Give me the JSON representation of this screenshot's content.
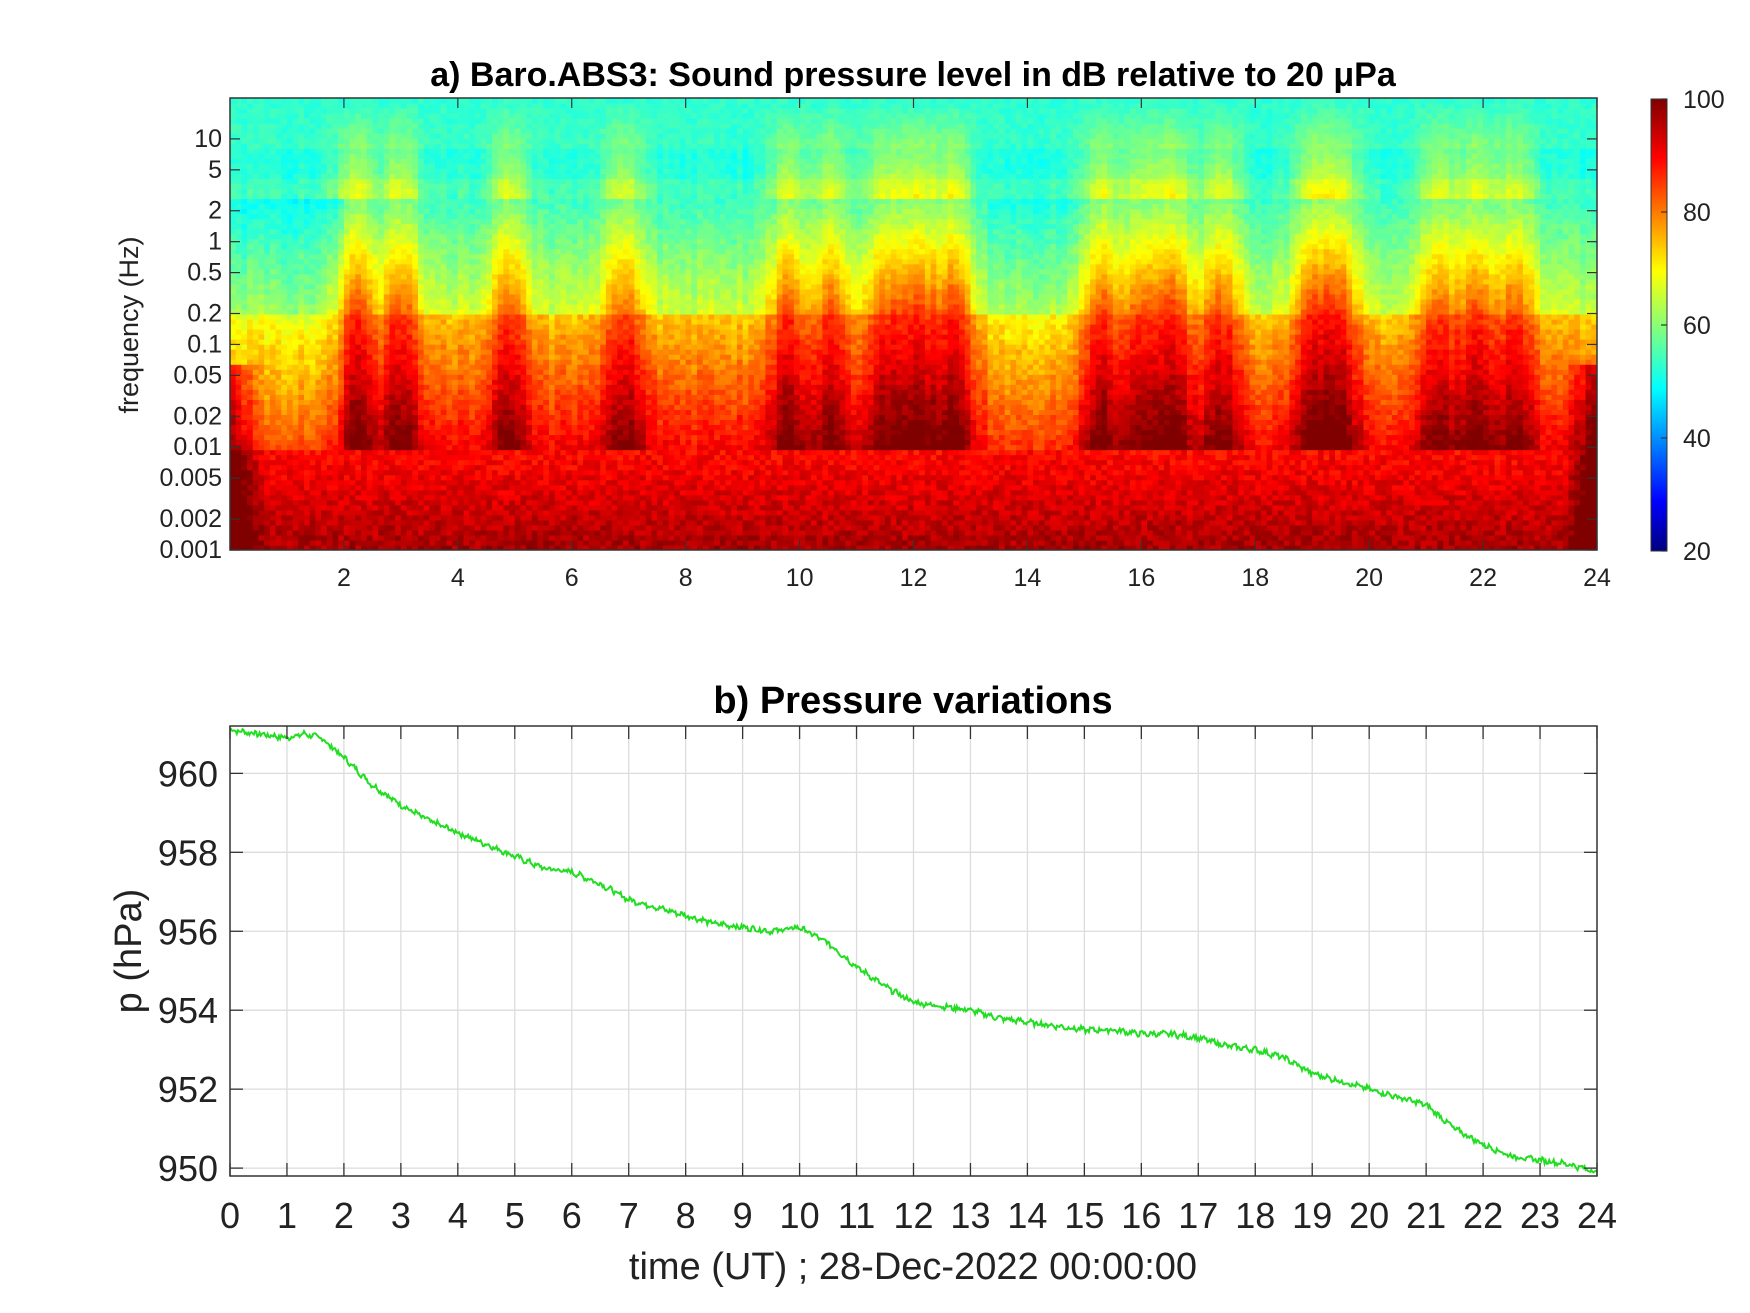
{
  "chart_data": [
    {
      "type": "heatmap",
      "title": "a) Baro.ABS3: Sound pressure level in dB relative to 20 μPa",
      "ylabel": "frequency (Hz)",
      "xlabel": "",
      "x_ticks": [
        2,
        4,
        6,
        8,
        10,
        12,
        14,
        16,
        18,
        20,
        22,
        24
      ],
      "xlim": [
        0,
        24
      ],
      "y_scale": "log",
      "ylim": [
        0.001,
        25
      ],
      "y_ticks": [
        0.001,
        0.002,
        0.005,
        0.01,
        0.02,
        0.05,
        0.1,
        0.2,
        0.5,
        1,
        2,
        5,
        10
      ],
      "y_tick_labels": [
        "0.001",
        "0.002",
        "0.005",
        "0.01",
        "0.02",
        "0.05",
        "0.1",
        "0.2",
        "0.5",
        "1",
        "2",
        "5",
        "10"
      ],
      "colorbar": {
        "min": 20,
        "max": 100,
        "ticks": [
          20,
          40,
          60,
          80,
          100
        ],
        "colormap": "jet"
      },
      "activity_bursts_hours": [
        2.2,
        3.0,
        4.9,
        6.9,
        9.8,
        10.6,
        11.5,
        12.1,
        12.7,
        15.3,
        16.0,
        16.6,
        17.4,
        19.0,
        19.5,
        21.2,
        21.9,
        22.6
      ]
    },
    {
      "type": "line",
      "title": "b) Pressure variations",
      "xlabel": "time (UT) ; 28-Dec-2022 00:00:00",
      "ylabel": "p (hPa)",
      "xlim": [
        0,
        24
      ],
      "ylim": [
        949.8,
        961.2
      ],
      "x_ticks": [
        0,
        1,
        2,
        3,
        4,
        5,
        6,
        7,
        8,
        9,
        10,
        11,
        12,
        13,
        14,
        15,
        16,
        17,
        18,
        19,
        20,
        21,
        22,
        23,
        24
      ],
      "y_ticks": [
        950,
        952,
        954,
        956,
        958,
        960
      ],
      "grid": true,
      "color": "#22dd22",
      "series": [
        {
          "x": [
            0,
            0.5,
            1,
            1.3,
            1.6,
            2,
            2.5,
            3,
            3.5,
            4,
            4.5,
            5,
            5.5,
            6,
            6.5,
            7,
            7.5,
            8,
            8.5,
            9,
            9.5,
            10,
            10.5,
            11,
            11.5,
            12,
            12.5,
            13,
            13.5,
            14,
            14.5,
            15,
            15.5,
            16,
            16.5,
            17,
            17.5,
            18,
            18.5,
            19,
            19.5,
            20,
            20.5,
            21,
            21.5,
            22,
            22.5,
            23,
            23.5,
            24
          ],
          "y": [
            961.1,
            961.0,
            960.9,
            961.0,
            960.9,
            960.4,
            959.7,
            959.2,
            958.8,
            958.5,
            958.2,
            957.9,
            957.6,
            957.5,
            957.2,
            956.8,
            956.6,
            956.4,
            956.2,
            956.1,
            956.0,
            956.1,
            955.7,
            955.1,
            954.6,
            954.2,
            954.1,
            954.0,
            953.8,
            953.7,
            953.6,
            953.5,
            953.5,
            953.4,
            953.4,
            953.3,
            953.1,
            953.0,
            952.8,
            952.4,
            952.2,
            952.0,
            951.8,
            951.6,
            951.0,
            950.6,
            950.3,
            950.2,
            950.1,
            949.9
          ]
        }
      ]
    }
  ]
}
